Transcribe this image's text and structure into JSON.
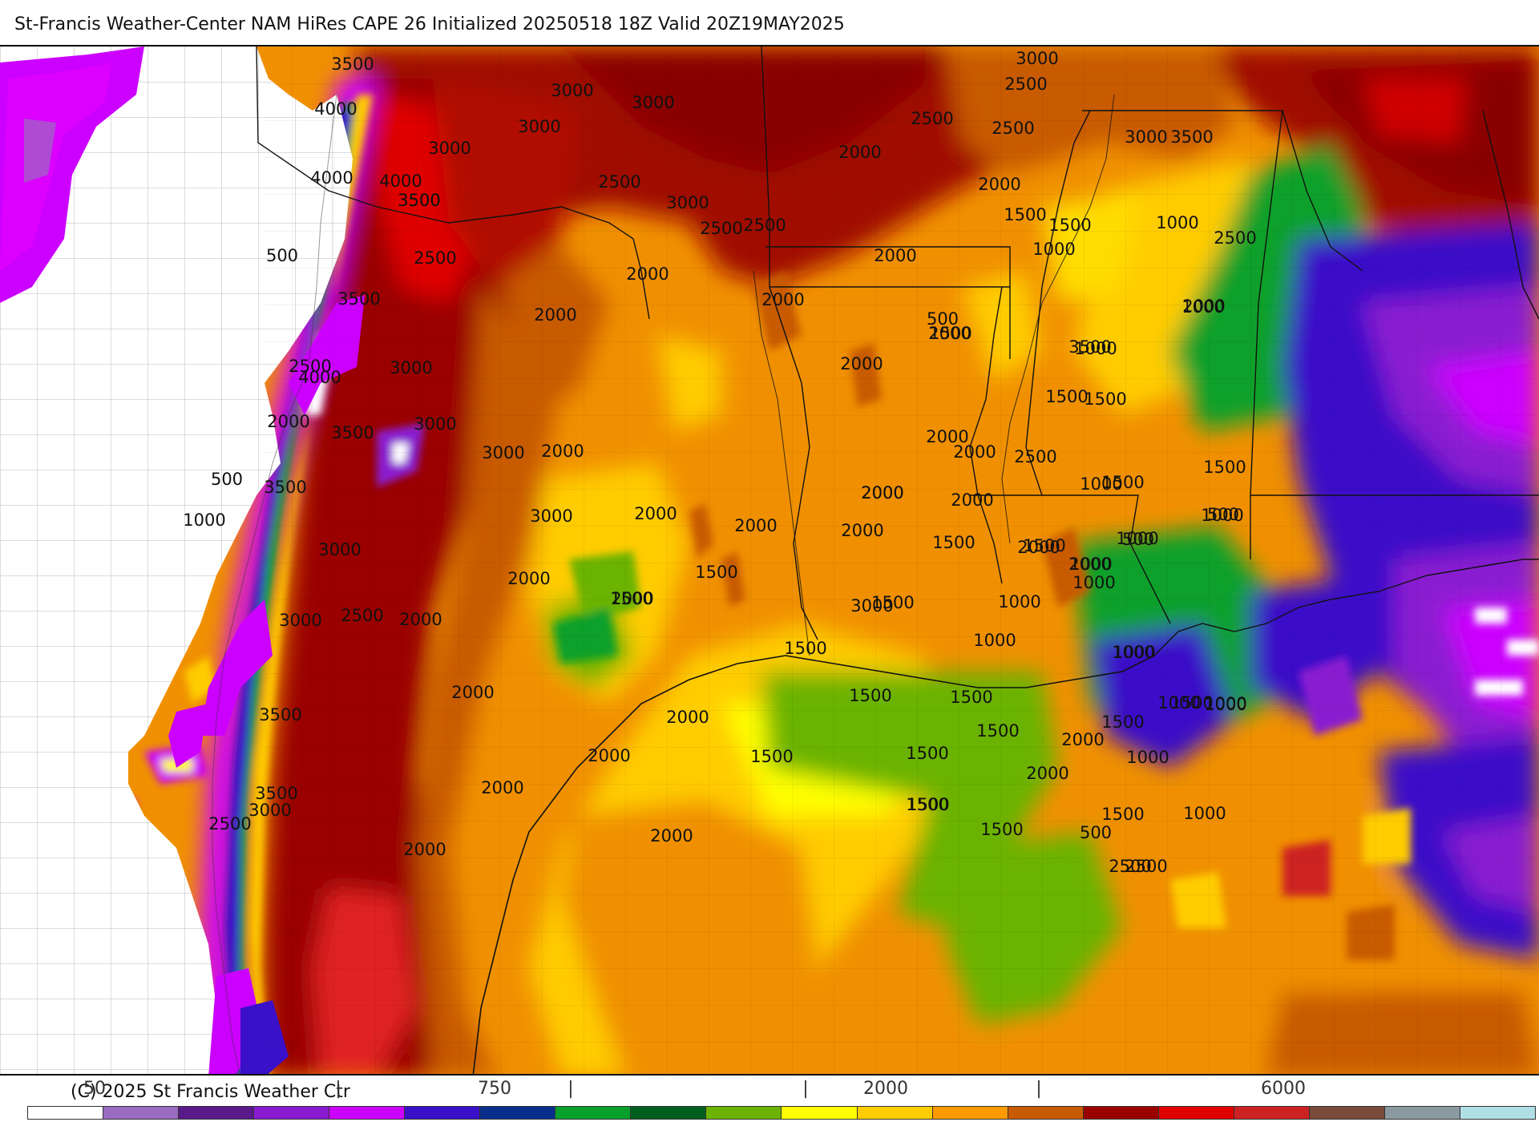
{
  "header": {
    "title": "St-Francis Weather-Center NAM HiRes CAPE  26 Initialized 20250518 18Z Valid 20Z19MAY2025"
  },
  "footer": {
    "credit": "(C) 2025 St Francis Weather Ctr"
  },
  "legend": {
    "tick_labels": [
      "50",
      "|",
      "750",
      "|",
      "|",
      "2000",
      "|",
      "6000"
    ],
    "colors": [
      "#ffffff",
      "#9b6bbf",
      "#5a1a8a",
      "#8a1ad0",
      "#cc00ff",
      "#3a10c8",
      "#0a2e8c",
      "#07a02a",
      "#005f1e",
      "#6bb300",
      "#ffff00",
      "#ffcc00",
      "#ff9a00",
      "#c85a00",
      "#9a0000",
      "#e00000",
      "#cc2222",
      "#7a4a3a",
      "#8a9aa0",
      "#b0e0e6"
    ]
  },
  "map": {
    "contour_labels": [
      {
        "text": "3500"
      },
      {
        "text": "3000"
      },
      {
        "text": "3000"
      },
      {
        "text": "3000"
      },
      {
        "text": "3000"
      },
      {
        "text": "2500"
      },
      {
        "text": "3000"
      },
      {
        "text": "3500"
      },
      {
        "text": "4000"
      },
      {
        "text": "4000"
      },
      {
        "text": "4000"
      },
      {
        "text": "3500"
      },
      {
        "text": "2500"
      },
      {
        "text": "3000"
      },
      {
        "text": "2500"
      },
      {
        "text": "2500"
      },
      {
        "text": "2500"
      },
      {
        "text": "2500"
      },
      {
        "text": "2000"
      },
      {
        "text": "2000"
      },
      {
        "text": "500"
      },
      {
        "text": "3500"
      },
      {
        "text": "2000"
      },
      {
        "text": "2000"
      },
      {
        "text": "2500"
      },
      {
        "text": "3000"
      },
      {
        "text": "2000"
      },
      {
        "text": "3000"
      },
      {
        "text": "1500"
      },
      {
        "text": "2000"
      },
      {
        "text": "3500"
      },
      {
        "text": "2000"
      },
      {
        "text": "1000"
      },
      {
        "text": "1500"
      },
      {
        "text": "3000"
      },
      {
        "text": "500"
      },
      {
        "text": "3500"
      },
      {
        "text": "1000"
      },
      {
        "text": "2000"
      },
      {
        "text": "2000"
      },
      {
        "text": "2000"
      },
      {
        "text": "3000"
      },
      {
        "text": "2000"
      },
      {
        "text": "1500"
      },
      {
        "text": "1500"
      },
      {
        "text": "3000"
      },
      {
        "text": "2500"
      },
      {
        "text": "2000"
      },
      {
        "text": "1500"
      },
      {
        "text": "2000"
      },
      {
        "text": "1500"
      },
      {
        "text": "3500"
      },
      {
        "text": "2000"
      },
      {
        "text": "2000"
      },
      {
        "text": "4000"
      },
      {
        "text": "2000"
      },
      {
        "text": "500"
      },
      {
        "text": "1500"
      },
      {
        "text": "3500"
      },
      {
        "text": "1000"
      },
      {
        "text": "3000"
      },
      {
        "text": "2500"
      },
      {
        "text": "3000"
      },
      {
        "text": "2000"
      },
      {
        "text": "2000"
      },
      {
        "text": "2000"
      },
      {
        "text": "3000"
      },
      {
        "text": "2500"
      },
      {
        "text": "2000"
      },
      {
        "text": "1000"
      },
      {
        "text": "3500"
      },
      {
        "text": "2000"
      },
      {
        "text": "2500"
      },
      {
        "text": "3500"
      },
      {
        "text": "3000"
      },
      {
        "text": "2500"
      },
      {
        "text": "1000"
      },
      {
        "text": "1500"
      },
      {
        "text": "2000"
      },
      {
        "text": "1500"
      },
      {
        "text": "2000"
      },
      {
        "text": "1500"
      },
      {
        "text": "1500"
      },
      {
        "text": "1000"
      },
      {
        "text": "1000"
      },
      {
        "text": "1500"
      },
      {
        "text": "1500"
      },
      {
        "text": "1500"
      },
      {
        "text": "2000"
      },
      {
        "text": "1500"
      },
      {
        "text": "1500"
      },
      {
        "text": "2000"
      },
      {
        "text": "1000"
      },
      {
        "text": "1500"
      },
      {
        "text": "1000"
      },
      {
        "text": "1500"
      },
      {
        "text": "1000"
      },
      {
        "text": "2500"
      },
      {
        "text": "1500"
      },
      {
        "text": "1500"
      },
      {
        "text": "2000"
      },
      {
        "text": "1000"
      },
      {
        "text": "1500"
      },
      {
        "text": "1000"
      },
      {
        "text": "1000"
      },
      {
        "text": "1000"
      },
      {
        "text": "1500"
      },
      {
        "text": "500"
      },
      {
        "text": "1000"
      },
      {
        "text": "1000"
      },
      {
        "text": "500"
      },
      {
        "text": "1000"
      },
      {
        "text": "500"
      },
      {
        "text": "1000"
      },
      {
        "text": "1000"
      },
      {
        "text": "2000"
      },
      {
        "text": "2000"
      },
      {
        "text": "1500"
      },
      {
        "text": "2000"
      },
      {
        "text": "2000"
      },
      {
        "text": "2000"
      },
      {
        "text": "1500"
      },
      {
        "text": "2000"
      },
      {
        "text": "2500"
      }
    ]
  }
}
